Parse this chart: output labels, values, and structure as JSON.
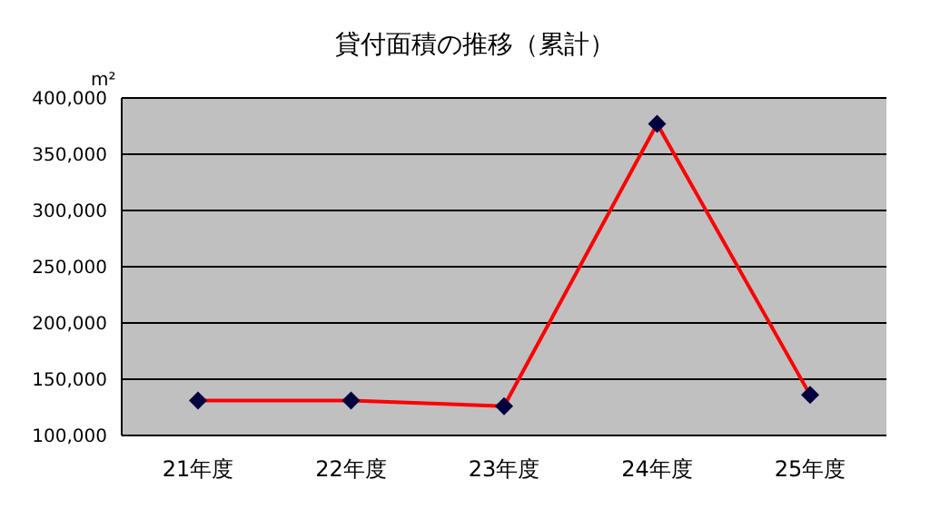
{
  "chart_data": {
    "type": "line",
    "title": "貸付面積の推移（累計）",
    "ylabel": "m²",
    "categories": [
      "21年度",
      "22年度",
      "23年度",
      "24年度",
      "25年度"
    ],
    "series": [
      {
        "color": "#ff0000",
        "values": [
          131000,
          131000,
          126000,
          377000,
          136000
        ]
      }
    ],
    "ylim": [
      100000,
      400000
    ],
    "yticks": [
      {
        "value": 100000,
        "label": "100,000"
      },
      {
        "value": 150000,
        "label": "150,000"
      },
      {
        "value": 200000,
        "label": "200,000"
      },
      {
        "value": 250000,
        "label": "250,000"
      },
      {
        "value": 300000,
        "label": "300,000"
      },
      {
        "value": 350000,
        "label": "350,000"
      },
      {
        "value": 400000,
        "label": "400,000"
      }
    ],
    "grid": "y",
    "legend": false,
    "marker": "diamond",
    "line_style": "solid"
  }
}
